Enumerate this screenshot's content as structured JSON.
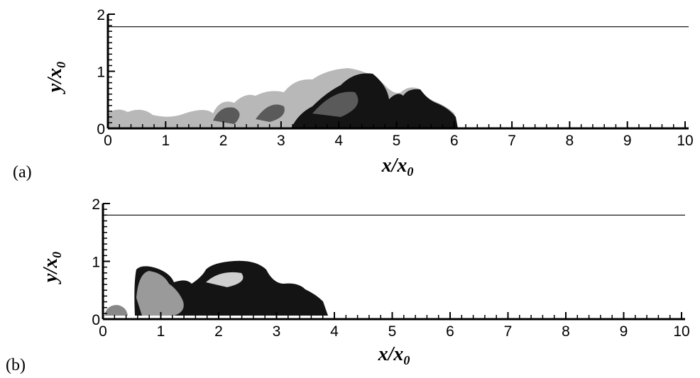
{
  "panels": [
    {
      "label": "(a)",
      "x_label": {
        "main": "x/x",
        "sub": "0"
      },
      "y_label": {
        "main": "y/x",
        "sub": "0"
      },
      "xlim": [
        0,
        10
      ],
      "ylim": [
        0,
        2
      ],
      "xticks": [
        0,
        1,
        2,
        3,
        4,
        5,
        6,
        7,
        8,
        9,
        10
      ],
      "yticks": [
        0,
        1,
        2
      ],
      "reference_line": 1.78
    },
    {
      "label": "(b)",
      "x_label": {
        "main": "x/x",
        "sub": "0"
      },
      "y_label": {
        "main": "y/x",
        "sub": "0"
      },
      "xlim": [
        0,
        10
      ],
      "ylim": [
        0,
        2
      ],
      "xticks": [
        0,
        1,
        2,
        3,
        4,
        5,
        6,
        7,
        8,
        9,
        10
      ],
      "yticks": [
        0,
        1,
        2
      ],
      "reference_line": 1.8
    }
  ]
}
